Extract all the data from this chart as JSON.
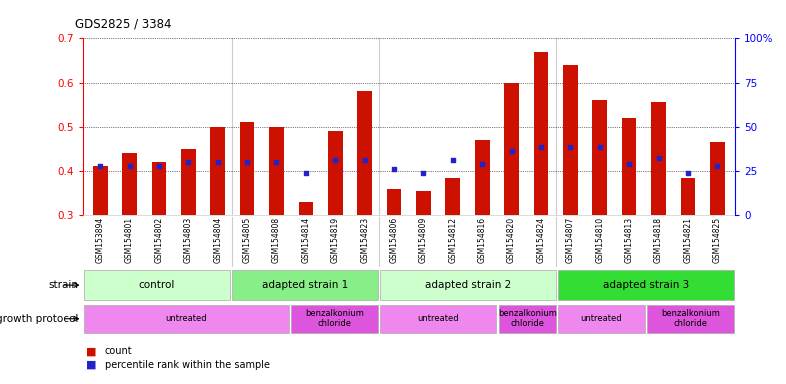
{
  "title": "GDS2825 / 3384",
  "samples": [
    "GSM153894",
    "GSM154801",
    "GSM154802",
    "GSM154803",
    "GSM154804",
    "GSM154805",
    "GSM154808",
    "GSM154814",
    "GSM154819",
    "GSM154823",
    "GSM154806",
    "GSM154809",
    "GSM154812",
    "GSM154816",
    "GSM154820",
    "GSM154824",
    "GSM154807",
    "GSM154810",
    "GSM154813",
    "GSM154818",
    "GSM154821",
    "GSM154825"
  ],
  "count_values": [
    0.41,
    0.44,
    0.42,
    0.45,
    0.5,
    0.51,
    0.5,
    0.33,
    0.49,
    0.58,
    0.36,
    0.355,
    0.385,
    0.47,
    0.6,
    0.67,
    0.64,
    0.56,
    0.52,
    0.555,
    0.385,
    0.465
  ],
  "percentile_values": [
    0.41,
    0.41,
    0.41,
    0.42,
    0.42,
    0.42,
    0.42,
    0.395,
    0.425,
    0.425,
    0.405,
    0.395,
    0.425,
    0.415,
    0.445,
    0.455,
    0.455,
    0.455,
    0.415,
    0.43,
    0.395,
    0.41
  ],
  "strain_groups": [
    {
      "label": "control",
      "start": 0,
      "end": 5,
      "color": "#ccffcc"
    },
    {
      "label": "adapted strain 1",
      "start": 5,
      "end": 10,
      "color": "#88ee88"
    },
    {
      "label": "adapted strain 2",
      "start": 10,
      "end": 16,
      "color": "#ccffcc"
    },
    {
      "label": "adapted strain 3",
      "start": 16,
      "end": 22,
      "color": "#33dd33"
    }
  ],
  "protocol_groups": [
    {
      "label": "untreated",
      "start": 0,
      "end": 7,
      "color": "#ee88ee"
    },
    {
      "label": "benzalkonium\nchloride",
      "start": 7,
      "end": 10,
      "color": "#dd55dd"
    },
    {
      "label": "untreated",
      "start": 10,
      "end": 14,
      "color": "#ee88ee"
    },
    {
      "label": "benzalkonium\nchloride",
      "start": 14,
      "end": 16,
      "color": "#dd55dd"
    },
    {
      "label": "untreated",
      "start": 16,
      "end": 19,
      "color": "#ee88ee"
    },
    {
      "label": "benzalkonium\nchloride",
      "start": 19,
      "end": 22,
      "color": "#dd55dd"
    }
  ],
  "group_boundaries": [
    5,
    10,
    16
  ],
  "ylim_left": [
    0.3,
    0.7
  ],
  "ylim_right": [
    0,
    100
  ],
  "yticks_left": [
    0.3,
    0.4,
    0.5,
    0.6,
    0.7
  ],
  "yticks_right": [
    0,
    25,
    50,
    75,
    100
  ],
  "ytick_labels_right": [
    "0",
    "25",
    "50",
    "75",
    "100%"
  ],
  "bar_color": "#cc1100",
  "percentile_color": "#2222cc",
  "background_color": "#ffffff",
  "strain_row_label": "strain",
  "protocol_row_label": "growth protocol",
  "legend_count": "count",
  "legend_percentile": "percentile rank within the sample",
  "bar_width": 0.5
}
